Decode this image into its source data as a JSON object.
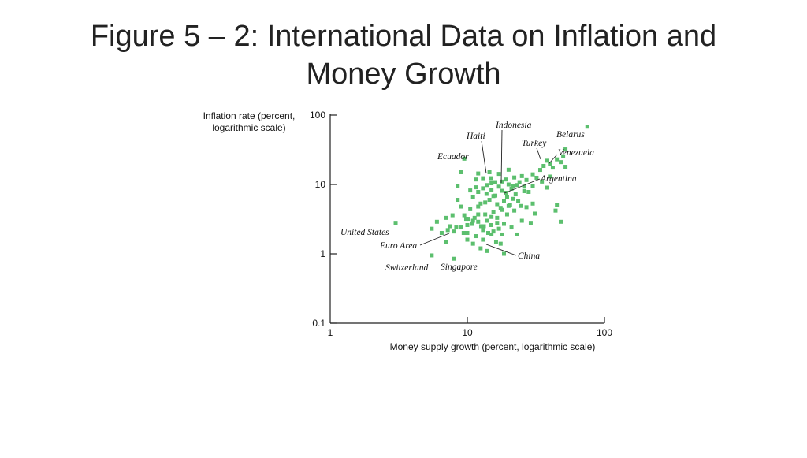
{
  "title_line1": "Figure 5 – 2: International Data on Inflation and",
  "title_line2": "Money Growth",
  "chart_data": {
    "type": "scatter",
    "x_scale": "log",
    "y_scale": "log",
    "xlabel": "Money supply growth (percent, logarithmic scale)",
    "ylabel_line1": "Inflation rate (percent,",
    "ylabel_line2": "logarithmic scale)",
    "xlim": [
      1,
      100
    ],
    "ylim": [
      0.1,
      100
    ],
    "x_ticks": [
      "1",
      "10",
      "100"
    ],
    "y_ticks": [
      "100",
      "10",
      "1",
      "0.1"
    ],
    "marker_color": "#5cbf6e",
    "points": [
      [
        3.0,
        2.8
      ],
      [
        5.5,
        2.3
      ],
      [
        5.5,
        0.95
      ],
      [
        8.0,
        0.85
      ],
      [
        8.5,
        9.5
      ],
      [
        6.5,
        2.0
      ],
      [
        7.0,
        1.5
      ],
      [
        7.5,
        2.5
      ],
      [
        9.5,
        3.6
      ],
      [
        10.2,
        3.2
      ],
      [
        10.8,
        2.7
      ],
      [
        10.0,
        2.0
      ],
      [
        9.0,
        2.4
      ],
      [
        11.3,
        3.3
      ],
      [
        12.0,
        2.9
      ],
      [
        12.6,
        2.5
      ],
      [
        11.5,
        1.8
      ],
      [
        11.0,
        1.4
      ],
      [
        13.0,
        2.2
      ],
      [
        13.5,
        3.7
      ],
      [
        14.0,
        3.0
      ],
      [
        14.8,
        2.6
      ],
      [
        15.5,
        2.1
      ],
      [
        13.0,
        1.6
      ],
      [
        16.2,
        1.5
      ],
      [
        16.5,
        2.8
      ],
      [
        17.0,
        2.3
      ],
      [
        18.0,
        1.9
      ],
      [
        17.5,
        1.4
      ],
      [
        18.5,
        1.0
      ],
      [
        15.0,
        1.9
      ],
      [
        12.5,
        1.2
      ],
      [
        10.5,
        4.4
      ],
      [
        12.0,
        4.8
      ],
      [
        13.5,
        5.5
      ],
      [
        14.5,
        6.0
      ],
      [
        15.5,
        6.8
      ],
      [
        16.5,
        5.2
      ],
      [
        17.5,
        4.6
      ],
      [
        18.5,
        5.7
      ],
      [
        19.5,
        6.6
      ],
      [
        20.5,
        5.0
      ],
      [
        21.5,
        6.2
      ],
      [
        22.5,
        7.2
      ],
      [
        23.5,
        5.8
      ],
      [
        24.5,
        4.9
      ],
      [
        11.0,
        6.5
      ],
      [
        12.0,
        7.8
      ],
      [
        13.0,
        8.8
      ],
      [
        14.0,
        9.8
      ],
      [
        15.0,
        8.3
      ],
      [
        16.0,
        10.8
      ],
      [
        17.0,
        9.3
      ],
      [
        18.0,
        8.1
      ],
      [
        19.0,
        11.8
      ],
      [
        20.0,
        10.0
      ],
      [
        21.0,
        8.7
      ],
      [
        22.0,
        12.6
      ],
      [
        23.0,
        9.8
      ],
      [
        25.0,
        13.2
      ],
      [
        26.0,
        9.3
      ],
      [
        27.0,
        11.6
      ],
      [
        28.0,
        7.8
      ],
      [
        30.0,
        14.0
      ],
      [
        32.0,
        12.5
      ],
      [
        34.0,
        16.2
      ],
      [
        36.0,
        18.5
      ],
      [
        38.0,
        22.0
      ],
      [
        40.0,
        20.0
      ],
      [
        42.0,
        17.5
      ],
      [
        45.0,
        23.0
      ],
      [
        48.0,
        21.0
      ],
      [
        50.0,
        25.5
      ],
      [
        52.0,
        32.0
      ],
      [
        35.0,
        11.0
      ],
      [
        38.0,
        9.0
      ],
      [
        45.0,
        5.0
      ],
      [
        48.0,
        2.9
      ],
      [
        44.0,
        4.2
      ],
      [
        40.0,
        13.0
      ],
      [
        9.5,
        23.5
      ],
      [
        13.0,
        12.3
      ],
      [
        14.5,
        15.0
      ],
      [
        17.0,
        14.2
      ],
      [
        20.0,
        16.3
      ],
      [
        9.0,
        15.0
      ],
      [
        10.5,
        8.2
      ],
      [
        11.5,
        11.8
      ],
      [
        8.5,
        6.0
      ],
      [
        9.0,
        4.8
      ],
      [
        7.8,
        3.6
      ],
      [
        7.0,
        3.3
      ],
      [
        16.5,
        3.3
      ],
      [
        19.5,
        3.7
      ],
      [
        22.0,
        4.2
      ],
      [
        25.0,
        3.0
      ],
      [
        27.0,
        4.7
      ],
      [
        30.0,
        5.3
      ],
      [
        14.0,
        1.1
      ],
      [
        10.0,
        1.6
      ],
      [
        8.0,
        2.1
      ],
      [
        12.5,
        5.3
      ],
      [
        15.5,
        4.0
      ],
      [
        18.5,
        2.7
      ],
      [
        21.0,
        2.4
      ],
      [
        23.0,
        1.9
      ],
      [
        29.0,
        2.8
      ],
      [
        31.0,
        3.8
      ],
      [
        11.5,
        9.1
      ],
      [
        13.8,
        7.3
      ],
      [
        16.0,
        6.9
      ],
      [
        19.0,
        7.6
      ],
      [
        21.5,
        9.4
      ],
      [
        24.0,
        10.8
      ],
      [
        14.8,
        12.3
      ],
      [
        17.8,
        11.0
      ],
      [
        12.0,
        14.4
      ],
      [
        15.0,
        10.4
      ],
      [
        18.0,
        4.3
      ],
      [
        20.0,
        4.9
      ],
      [
        10.0,
        2.6
      ],
      [
        11.0,
        3.0
      ],
      [
        9.8,
        3.2
      ],
      [
        75.0,
        68.0
      ],
      [
        52.0,
        18.0
      ],
      [
        30.0,
        9.5
      ],
      [
        26.0,
        8.0
      ],
      [
        6.0,
        2.9
      ],
      [
        7.2,
        2.2
      ],
      [
        8.3,
        2.4
      ],
      [
        9.4,
        2.0
      ],
      [
        12.0,
        3.7
      ],
      [
        13.2,
        2.5
      ],
      [
        14.2,
        2.0
      ],
      [
        15.0,
        3.4
      ]
    ],
    "annotations": [
      {
        "label": "Indonesia"
      },
      {
        "label": "Haiti"
      },
      {
        "label": "Belarus"
      },
      {
        "label": "Turkey"
      },
      {
        "label": "Ecuador"
      },
      {
        "label": "Venezuela"
      },
      {
        "label": "Argentina"
      },
      {
        "label": "United States"
      },
      {
        "label": "Euro Area"
      },
      {
        "label": "China"
      },
      {
        "label": "Switzerland"
      },
      {
        "label": "Singapore"
      }
    ]
  }
}
